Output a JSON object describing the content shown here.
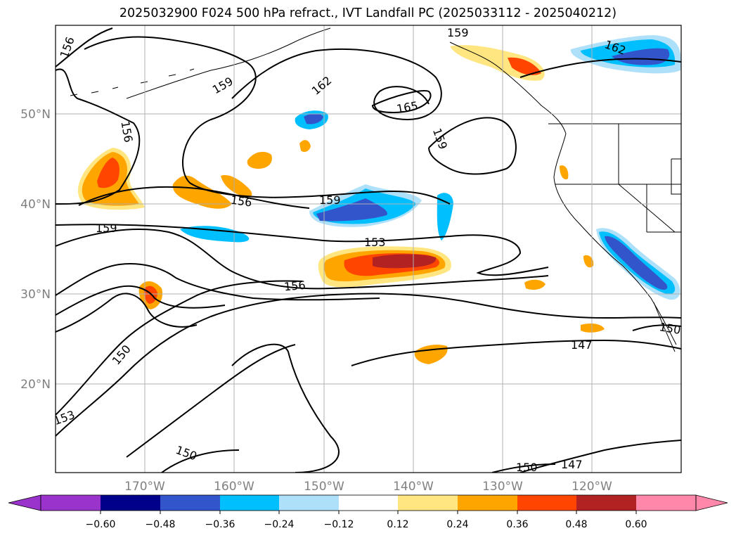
{
  "title": "2025032900 F024 500 hPa refract., IVT Landfall PC (2025033112 - 2025040212)",
  "lat_labels": [
    "50°N",
    "40°N",
    "30°N",
    "20°N"
  ],
  "lon_labels": [
    "170°W",
    "160°W",
    "150°W",
    "140°W",
    "130°W",
    "120°W"
  ],
  "contour_labels": [
    "156",
    "159",
    "162",
    "159",
    "165",
    "159",
    "156",
    "156",
    "159",
    "159",
    "153",
    "156",
    "150",
    "153",
    "150",
    "150",
    "147",
    "147",
    "150",
    "162"
  ],
  "colorbar": {
    "ticks": [
      "−0.60",
      "−0.48",
      "−0.36",
      "−0.24",
      "−0.12",
      "0.12",
      "0.24",
      "0.36",
      "0.48",
      "0.60"
    ],
    "colors": [
      "#9933cc",
      "#00008b",
      "#3355cc",
      "#00bfff",
      "#aee0fa",
      "#ffffff",
      "#ffe680",
      "#ffa500",
      "#ff4500",
      "#b22222",
      "#ff88aa"
    ]
  },
  "palette": {
    "dark_blue": "#3355cc",
    "blue": "#00bfff",
    "light_blue": "#aee0fa",
    "light_yellow": "#ffe680",
    "orange": "#ffa500",
    "red_orange": "#ff4500",
    "dark_red": "#b22222"
  }
}
